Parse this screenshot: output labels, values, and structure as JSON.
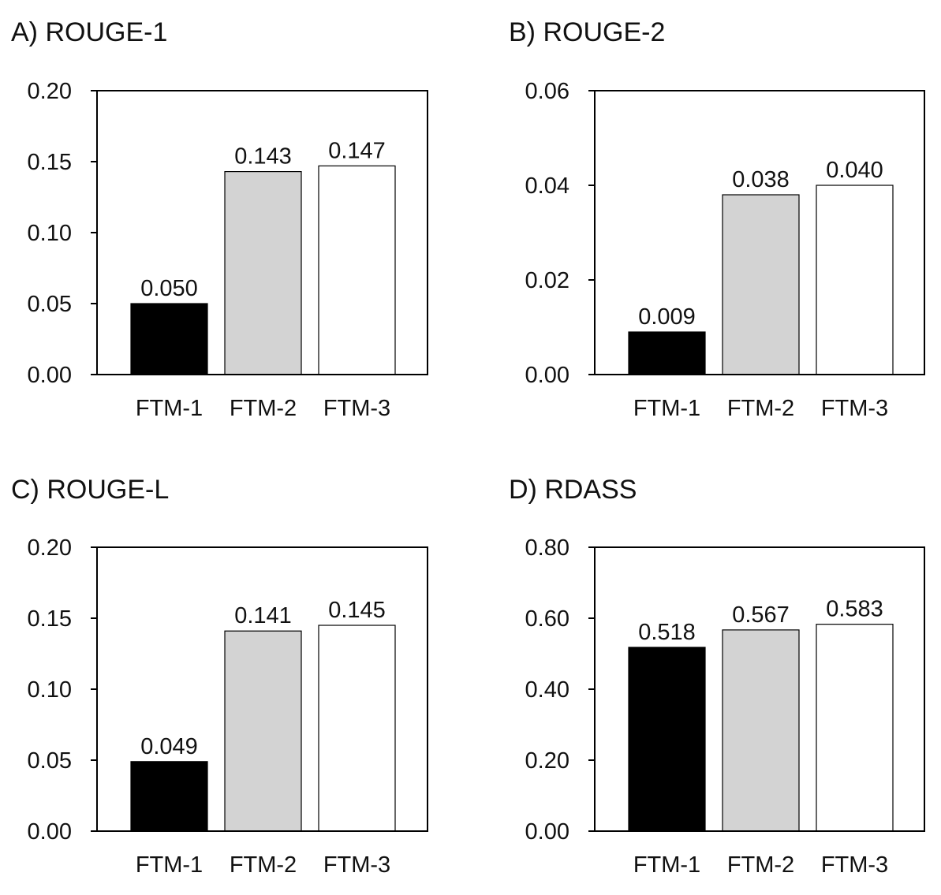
{
  "chart_data": [
    {
      "type": "bar",
      "title": "A) ROUGE-1",
      "categories": [
        "FTM-1",
        "FTM-2",
        "FTM-3"
      ],
      "values": [
        0.05,
        0.143,
        0.147
      ],
      "value_labels": [
        "0.050",
        "0.143",
        "0.147"
      ],
      "bar_colors": [
        "#000000",
        "#d3d3d3",
        "#ffffff"
      ],
      "ylim": [
        0,
        0.2
      ],
      "yticks": [
        0.0,
        0.05,
        0.1,
        0.15,
        0.2
      ],
      "ytick_labels": [
        "0.00",
        "0.05",
        "0.10",
        "0.15",
        "0.20"
      ],
      "xlabel": "",
      "ylabel": "",
      "grid": false,
      "legend": "none"
    },
    {
      "type": "bar",
      "title": "B) ROUGE-2",
      "categories": [
        "FTM-1",
        "FTM-2",
        "FTM-3"
      ],
      "values": [
        0.009,
        0.038,
        0.04
      ],
      "value_labels": [
        "0.009",
        "0.038",
        "0.040"
      ],
      "bar_colors": [
        "#000000",
        "#d3d3d3",
        "#ffffff"
      ],
      "ylim": [
        0,
        0.06
      ],
      "yticks": [
        0.0,
        0.02,
        0.04,
        0.06
      ],
      "ytick_labels": [
        "0.00",
        "0.02",
        "0.04",
        "0.06"
      ],
      "xlabel": "",
      "ylabel": "",
      "grid": false,
      "legend": "none"
    },
    {
      "type": "bar",
      "title": "C) ROUGE-L",
      "categories": [
        "FTM-1",
        "FTM-2",
        "FTM-3"
      ],
      "values": [
        0.049,
        0.141,
        0.145
      ],
      "value_labels": [
        "0.049",
        "0.141",
        "0.145"
      ],
      "bar_colors": [
        "#000000",
        "#d3d3d3",
        "#ffffff"
      ],
      "ylim": [
        0,
        0.2
      ],
      "yticks": [
        0.0,
        0.05,
        0.1,
        0.15,
        0.2
      ],
      "ytick_labels": [
        "0.00",
        "0.05",
        "0.10",
        "0.15",
        "0.20"
      ],
      "xlabel": "",
      "ylabel": "",
      "grid": false,
      "legend": "none"
    },
    {
      "type": "bar",
      "title": "D) RDASS",
      "categories": [
        "FTM-1",
        "FTM-2",
        "FTM-3"
      ],
      "values": [
        0.518,
        0.567,
        0.583
      ],
      "value_labels": [
        "0.518",
        "0.567",
        "0.583"
      ],
      "bar_colors": [
        "#000000",
        "#d3d3d3",
        "#ffffff"
      ],
      "ylim": [
        0,
        0.8
      ],
      "yticks": [
        0.0,
        0.2,
        0.4,
        0.6,
        0.8
      ],
      "ytick_labels": [
        "0.00",
        "0.20",
        "0.40",
        "0.60",
        "0.80"
      ],
      "xlabel": "",
      "ylabel": "",
      "grid": false,
      "legend": "none"
    }
  ]
}
